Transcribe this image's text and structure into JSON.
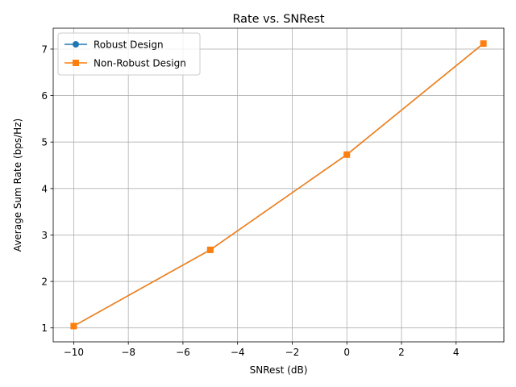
{
  "chart_data": {
    "type": "line",
    "title": "Rate vs. SNRest",
    "xlabel": "SNRest (dB)",
    "ylabel": "Average Sum Rate (bps/Hz)",
    "x": [
      -10,
      -5,
      0,
      5
    ],
    "xlim": [
      -10.75,
      5.75
    ],
    "ylim": [
      0.7,
      7.45
    ],
    "xticks": [
      -10,
      -8,
      -6,
      -4,
      -2,
      0,
      2,
      4
    ],
    "xtick_labels": [
      "−10",
      "−8",
      "−6",
      "−4",
      "−2",
      "0",
      "2",
      "4"
    ],
    "yticks": [
      1,
      2,
      3,
      4,
      5,
      6,
      7
    ],
    "ytick_labels": [
      "1",
      "2",
      "3",
      "4",
      "5",
      "6",
      "7"
    ],
    "grid": true,
    "legend_position": "top-left",
    "series": [
      {
        "name": "Robust Design",
        "values": [
          1.04,
          2.68,
          4.73,
          7.12
        ],
        "color": "#1f77b4",
        "marker": "circle"
      },
      {
        "name": "Non-Robust Design",
        "values": [
          1.04,
          2.68,
          4.73,
          7.12
        ],
        "color": "#ff7f0e",
        "marker": "square"
      }
    ]
  }
}
